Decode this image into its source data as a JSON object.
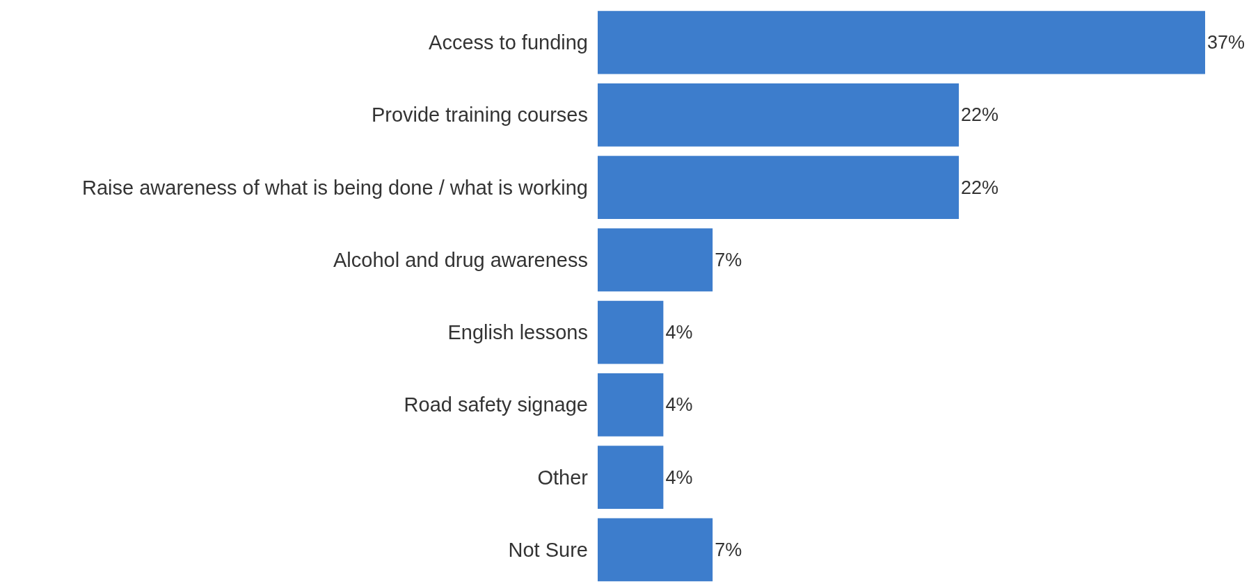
{
  "chart_data": {
    "type": "bar",
    "orientation": "horizontal",
    "categories": [
      "Access to funding",
      "Provide training courses",
      "Raise awareness of what is being done / what is working",
      "Alcohol and drug awareness",
      "English lessons",
      "Road safety signage",
      "Other",
      "Not Sure"
    ],
    "values": [
      37,
      22,
      22,
      7,
      4,
      4,
      4,
      7
    ],
    "value_labels": [
      "37%",
      "22%",
      "22%",
      "7%",
      "4%",
      "4%",
      "4%",
      "7%"
    ],
    "color": "#3d7dcc",
    "tick_labels": "y"
  }
}
